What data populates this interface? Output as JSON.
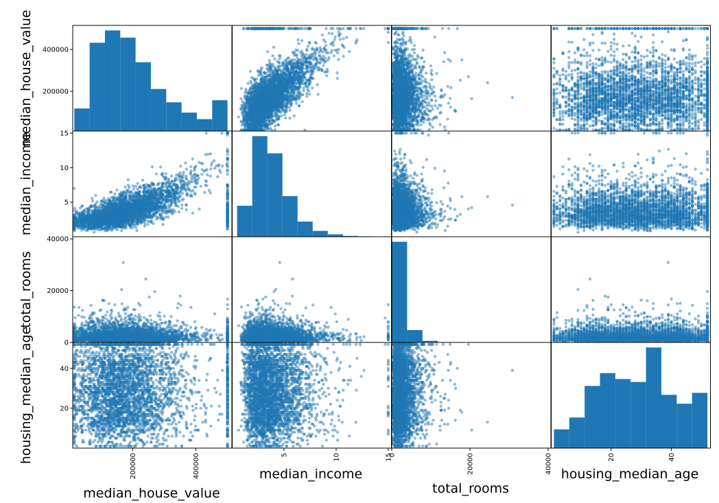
{
  "chart_data": {
    "type": "scatter_matrix",
    "title": "",
    "variables": [
      "median_house_value",
      "median_income",
      "total_rooms",
      "housing_median_age"
    ],
    "colors": {
      "marker": "#1f77b4",
      "hist": "#1f77b4",
      "axes": "#000000"
    },
    "marker_alpha": 0.5,
    "grid": false,
    "legend": "none",
    "ranges": {
      "median_house_value": [
        10000,
        515000
      ],
      "median_income": [
        0,
        15.3
      ],
      "total_rooms": [
        0,
        40800
      ],
      "housing_median_age": [
        0,
        53
      ]
    },
    "tick_labels": {
      "median_house_value": [
        "200000",
        "400000"
      ],
      "median_income": [
        "5",
        "10",
        "15"
      ],
      "total_rooms": [
        "0",
        "20000",
        "40000"
      ],
      "housing_median_age": [
        "20",
        "40"
      ]
    },
    "tick_values": {
      "median_house_value": [
        200000,
        400000
      ],
      "median_income": [
        5,
        10,
        15
      ],
      "total_rooms": [
        0,
        20000,
        40000
      ],
      "housing_median_age": [
        20,
        40
      ]
    },
    "histograms": {
      "median_house_value": {
        "bin_edges": [
          14999,
          63499,
          111999,
          160499,
          208999,
          257499,
          305999,
          354499,
          402999,
          451499,
          500001
        ],
        "counts": [
          110,
          430,
          490,
          455,
          335,
          205,
          140,
          90,
          58,
          150
        ]
      },
      "median_income": {
        "bin_edges": [
          0.5,
          1.95,
          3.4,
          4.85,
          6.3,
          7.75,
          9.2,
          10.65,
          12.1,
          13.55,
          15.0
        ],
        "counts": [
          4.5,
          14.6,
          12.1,
          5.9,
          2.2,
          0.85,
          0.35,
          0.12,
          0.06,
          0.04
        ]
      },
      "total_rooms": {
        "bin_edges": [
          2,
          3935,
          7868,
          11801,
          15734,
          19667,
          23600,
          27533,
          31466,
          35399,
          39320
        ],
        "counts": [
          390,
          48,
          6,
          1.5,
          0.5,
          0.2,
          0.1,
          0.1,
          0.05,
          0.05
        ]
      },
      "housing_median_age": {
        "bin_edges": [
          1,
          6.1,
          11.2,
          16.3,
          21.4,
          26.5,
          31.6,
          36.7,
          41.8,
          46.9,
          52
        ],
        "counts": [
          9.5,
          15.5,
          31.5,
          38,
          35,
          33.5,
          51,
          27,
          22.5,
          28
        ]
      }
    },
    "point_count_per_panel": 3500
  }
}
